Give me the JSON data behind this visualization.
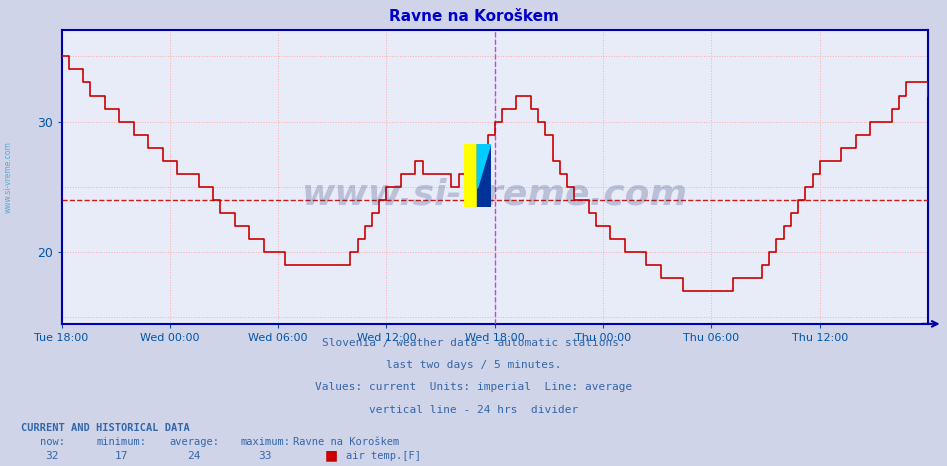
{
  "title": "Ravne na Koroškem",
  "title_color": "#0000cc",
  "bg_color": "#d0d4e8",
  "plot_bg_color": "#e8ecf8",
  "grid_color": "#ffaaaa",
  "xlabel_color": "#0055aa",
  "ylabel_color": "#0055aa",
  "line_color": "#cc0000",
  "avg_line_color": "#cc0000",
  "avg_value": 24,
  "divider_color": "#cc44cc",
  "x_tick_labels": [
    "Tue 18:00",
    "Wed 00:00",
    "Wed 06:00",
    "Wed 12:00",
    "Wed 18:00",
    "Thu 00:00",
    "Thu 06:00",
    "Thu 12:00"
  ],
  "x_tick_positions": [
    0,
    6,
    12,
    18,
    24,
    30,
    36,
    42
  ],
  "ylim": [
    14.5,
    37
  ],
  "footnote_lines": [
    "Slovenia / weather data - automatic stations.",
    "last two days / 5 minutes.",
    "Values: current  Units: imperial  Line: average",
    "vertical line - 24 hrs  divider"
  ],
  "footnote_color": "#3366aa",
  "watermark_text": "www.si-vreme.com",
  "watermark_color": "#1a2866",
  "watermark_alpha": 0.22,
  "left_label_color": "#3399cc",
  "stats_values": [
    "32",
    "17",
    "24",
    "33"
  ],
  "legend_label": "air temp.[F]",
  "legend_color": "#cc0000",
  "temperature_data": [
    35,
    34,
    34,
    33,
    32,
    32,
    31,
    31,
    30,
    30,
    29,
    29,
    28,
    28,
    27,
    27,
    26,
    26,
    26,
    25,
    25,
    24,
    23,
    23,
    22,
    22,
    21,
    21,
    20,
    20,
    20,
    19,
    19,
    19,
    19,
    19,
    19,
    19,
    19,
    19,
    20,
    21,
    22,
    23,
    24,
    25,
    25,
    26,
    26,
    27,
    26,
    26,
    26,
    26,
    25,
    26,
    27,
    28,
    28,
    29,
    30,
    31,
    31,
    32,
    32,
    31,
    30,
    29,
    27,
    26,
    25,
    24,
    24,
    23,
    22,
    22,
    21,
    21,
    20,
    20,
    20,
    19,
    19,
    18,
    18,
    18,
    17,
    17,
    17,
    17,
    17,
    17,
    17,
    18,
    18,
    18,
    18,
    19,
    20,
    21,
    22,
    23,
    24,
    25,
    26,
    27,
    27,
    27,
    28,
    28,
    29,
    29,
    30,
    30,
    30,
    31,
    32,
    33,
    33,
    33,
    32
  ]
}
